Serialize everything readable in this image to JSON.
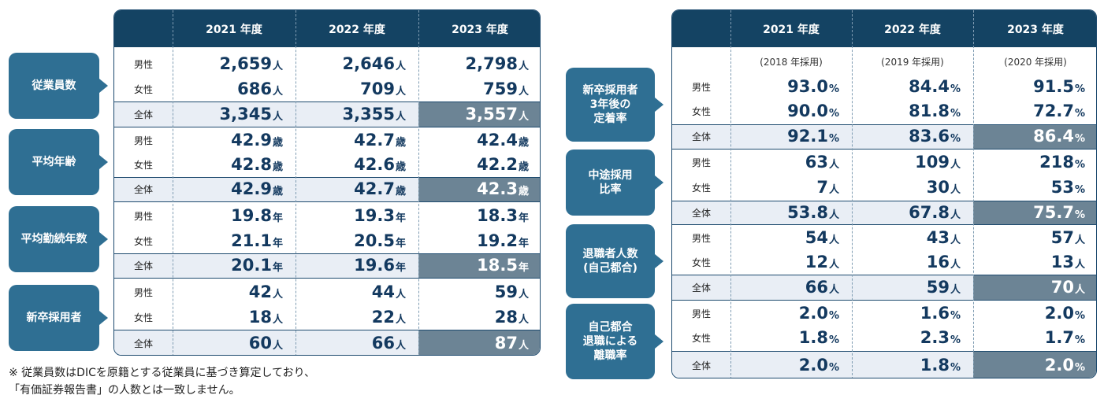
{
  "left": {
    "years": [
      "2021 年度",
      "2022 年度",
      "2023 年度"
    ],
    "categories": [
      "従業員数",
      "平均年齢",
      "平均勤続年数",
      "新卒採用者"
    ],
    "row_labels": [
      "男性",
      "女性",
      "全体"
    ],
    "groups": [
      {
        "unit": "人",
        "rows": [
          [
            "2,659",
            "2,646",
            "2,798"
          ],
          [
            "686",
            "709",
            "759"
          ],
          [
            "3,345",
            "3,355",
            "3,557"
          ]
        ]
      },
      {
        "unit": "歳",
        "rows": [
          [
            "42.9",
            "42.7",
            "42.4"
          ],
          [
            "42.8",
            "42.6",
            "42.2"
          ],
          [
            "42.9",
            "42.7",
            "42.3"
          ]
        ]
      },
      {
        "unit": "年",
        "rows": [
          [
            "19.8",
            "19.3",
            "18.3"
          ],
          [
            "21.1",
            "20.5",
            "19.2"
          ],
          [
            "20.1",
            "19.6",
            "18.5"
          ]
        ]
      },
      {
        "unit": "人",
        "rows": [
          [
            "42",
            "44",
            "59"
          ],
          [
            "18",
            "22",
            "28"
          ],
          [
            "60",
            "66",
            "87"
          ]
        ]
      }
    ]
  },
  "right": {
    "years": [
      "2021 年度",
      "2022 年度",
      "2023 年度"
    ],
    "hire_years": [
      "(2018 年採用)",
      "(2019 年採用)",
      "(2020 年採用)"
    ],
    "categories": [
      "新卒採用者\n3年後の\n定着率",
      "中途採用\n比率",
      "退職者人数\n(自己都合)",
      "自己都合\n退職による\n離職率"
    ],
    "row_labels": [
      "男性",
      "女性",
      "全体"
    ],
    "groups": [
      {
        "units": [
          "%",
          "%",
          "%"
        ],
        "rows": [
          [
            "93.0",
            "84.4",
            "91.5"
          ],
          [
            "90.0",
            "81.8",
            "72.7"
          ],
          [
            "92.1",
            "83.6",
            "86.4"
          ]
        ]
      },
      {
        "units": [
          "人",
          "人",
          "%"
        ],
        "rows": [
          [
            "63",
            "109",
            "218"
          ],
          [
            "7",
            "30",
            "53"
          ],
          [
            "53.8",
            "67.8",
            "75.7"
          ]
        ]
      },
      {
        "units": [
          "人",
          "人",
          "人"
        ],
        "rows": [
          [
            "54",
            "43",
            "57"
          ],
          [
            "12",
            "16",
            "13"
          ],
          [
            "66",
            "59",
            "70"
          ]
        ]
      },
      {
        "units": [
          "%",
          "%",
          "%"
        ],
        "rows": [
          [
            "2.0",
            "1.6",
            "2.0"
          ],
          [
            "1.8",
            "2.3",
            "1.7"
          ],
          [
            "2.0",
            "1.8",
            "2.0"
          ]
        ]
      }
    ]
  },
  "notes": [
    "※ 従業員数はDICを原籍とする従業員に基づき算定しており、",
    "「有価証券報告書」の人数とは一致しません。"
  ],
  "colors": {
    "header": "#144363",
    "category": "#2f6f93",
    "highlight": "#6c8495",
    "total_row": "#e9eef5",
    "text": "#13395f"
  }
}
